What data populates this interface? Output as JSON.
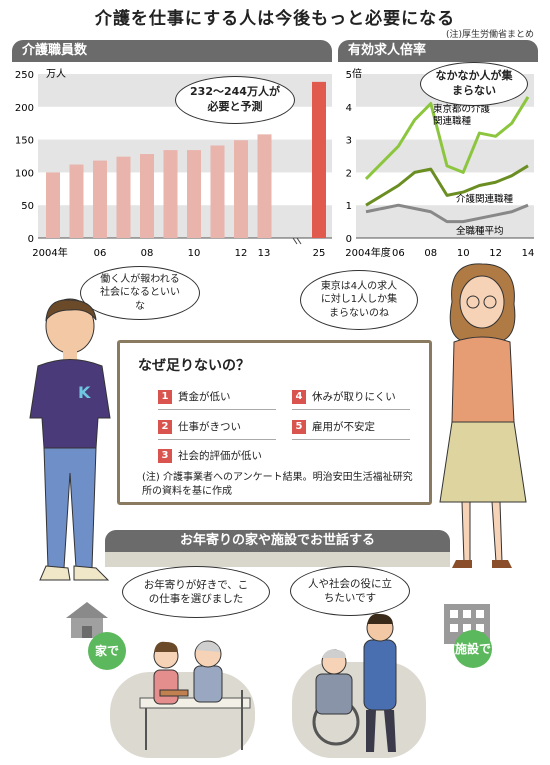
{
  "page": {
    "title": "介護を仕事にする人は今後もっと必要になる",
    "source_note": "(注)厚生労働省まとめ"
  },
  "left_panel": {
    "header": "介護職員数",
    "y_unit": "万人",
    "y_ticks": [
      "250",
      "200",
      "150",
      "100",
      "50",
      "0"
    ],
    "x_ticks": [
      "2004年",
      "06",
      "08",
      "10",
      "12",
      "13",
      "25"
    ],
    "callout": "232〜244万人が必要と予測"
  },
  "right_panel": {
    "header": "有効求人倍率",
    "y_unit": "倍",
    "y_ticks": [
      "5",
      "4",
      "3",
      "2",
      "1",
      "0"
    ],
    "x_ticks": [
      "2004年度",
      "06",
      "08",
      "10",
      "12",
      "14"
    ],
    "callout": "なかなか人が集まらない",
    "series_labels": [
      "東京都の介護関連職種",
      "介護関連職種",
      "全職種平均"
    ]
  },
  "chart_data": [
    {
      "type": "bar",
      "title": "介護職員数",
      "ylabel": "万人",
      "ylim": [
        0,
        250
      ],
      "categories": [
        "2004",
        "2005",
        "2006",
        "2007",
        "2008",
        "2009",
        "2010",
        "2011",
        "2012",
        "2013",
        "2025"
      ],
      "values": [
        100,
        112,
        118,
        124,
        128,
        134,
        134,
        141,
        149,
        158,
        238
      ],
      "projection_range_2025": [
        232,
        244
      ],
      "colors": {
        "actual": "#e8b4ac",
        "projection": "#e05a4e"
      }
    },
    {
      "type": "line",
      "title": "有効求人倍率",
      "ylabel": "倍",
      "ylim": [
        0,
        5
      ],
      "x": [
        2004,
        2005,
        2006,
        2007,
        2008,
        2009,
        2010,
        2011,
        2012,
        2013,
        2014
      ],
      "series": [
        {
          "name": "東京都の介護関連職種",
          "values": [
            1.8,
            2.3,
            2.8,
            3.6,
            4.1,
            2.2,
            2.0,
            3.2,
            3.1,
            3.5,
            4.3
          ],
          "color": "#8cc63e"
        },
        {
          "name": "介護関連職種",
          "values": [
            1.0,
            1.3,
            1.6,
            2.0,
            2.1,
            1.3,
            1.4,
            1.6,
            1.7,
            1.9,
            2.2
          ],
          "color": "#6b8e23"
        },
        {
          "name": "全職種平均",
          "values": [
            0.8,
            0.9,
            1.0,
            0.9,
            0.8,
            0.5,
            0.5,
            0.6,
            0.7,
            0.8,
            1.0
          ],
          "color": "#888888"
        }
      ]
    }
  ],
  "speech": {
    "man": "働く人が報われる社会になるといいな",
    "woman": "東京は4人の求人に対し1人しか集まらないのね",
    "home_worker": "お年寄りが好きで、この仕事を選びました",
    "facility_worker": "人や社会の役に立ちたいです"
  },
  "shirt_letter": "K",
  "reasons": {
    "title": "なぜ足りないの？",
    "items": [
      {
        "num": "1",
        "label": "賃金が低い"
      },
      {
        "num": "2",
        "label": "仕事がきつい"
      },
      {
        "num": "3",
        "label": "社会的評価が低い"
      },
      {
        "num": "4",
        "label": "休みが取りにくい"
      },
      {
        "num": "5",
        "label": "雇用が不安定"
      }
    ],
    "note": "(注) 介護事業者へのアンケート結果。明治安田生活福祉研究所の資料を基に作成"
  },
  "care": {
    "banner": "お年寄りの家や施設でお世話する",
    "home_badge": "家で",
    "facility_badge": "施設で"
  }
}
